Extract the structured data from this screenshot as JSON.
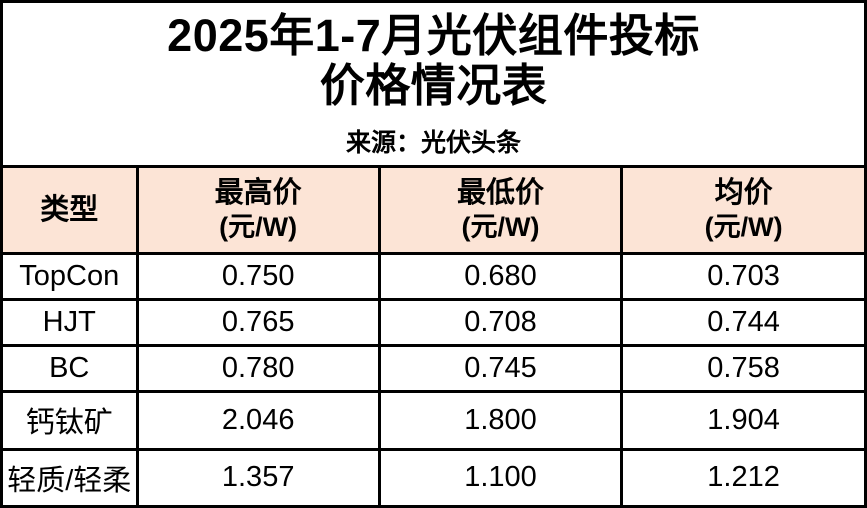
{
  "title": {
    "line1": "2025年1-7月光伏组件投标",
    "line2": "价格情况表",
    "source": "来源：光伏头条"
  },
  "colors": {
    "header_bg": "#FCE4D6",
    "border_color": "#000000",
    "text": "#000000"
  },
  "table": {
    "columns": [
      {
        "label": "类型",
        "unit": ""
      },
      {
        "label": "最高价",
        "unit": "(元/W)"
      },
      {
        "label": "最低价",
        "unit": "(元/W)"
      },
      {
        "label": "均价",
        "unit": "(元/W)"
      }
    ],
    "rows": [
      [
        "TopCon",
        "0.750",
        "0.680",
        "0.703"
      ],
      [
        "HJT",
        "0.765",
        "0.708",
        "0.744"
      ],
      [
        "BC",
        "0.780",
        "0.745",
        "0.758"
      ],
      [
        "钙钛矿",
        "2.046",
        "1.800",
        "1.904"
      ],
      [
        "轻质/轻柔",
        "1.357",
        "1.100",
        "1.212"
      ]
    ]
  },
  "chart_data": {
    "type": "table",
    "title": "2025年1-7月光伏组件投标价格情况表",
    "source": "来源：光伏头条",
    "columns": [
      "类型",
      "最高价(元/W)",
      "最低价(元/W)",
      "均价(元/W)"
    ],
    "rows": [
      {
        "type": "TopCon",
        "max": 0.75,
        "min": 0.68,
        "avg": 0.703
      },
      {
        "type": "HJT",
        "max": 0.765,
        "min": 0.708,
        "avg": 0.744
      },
      {
        "type": "BC",
        "max": 0.78,
        "min": 0.745,
        "avg": 0.758
      },
      {
        "type": "钙钛矿",
        "max": 2.046,
        "min": 1.8,
        "avg": 1.904
      },
      {
        "type": "轻质/轻柔",
        "max": 1.357,
        "min": 1.1,
        "avg": 1.212
      }
    ],
    "layout": {
      "header_background": "#FCE4D6",
      "grid": true,
      "units": "元/W"
    }
  }
}
